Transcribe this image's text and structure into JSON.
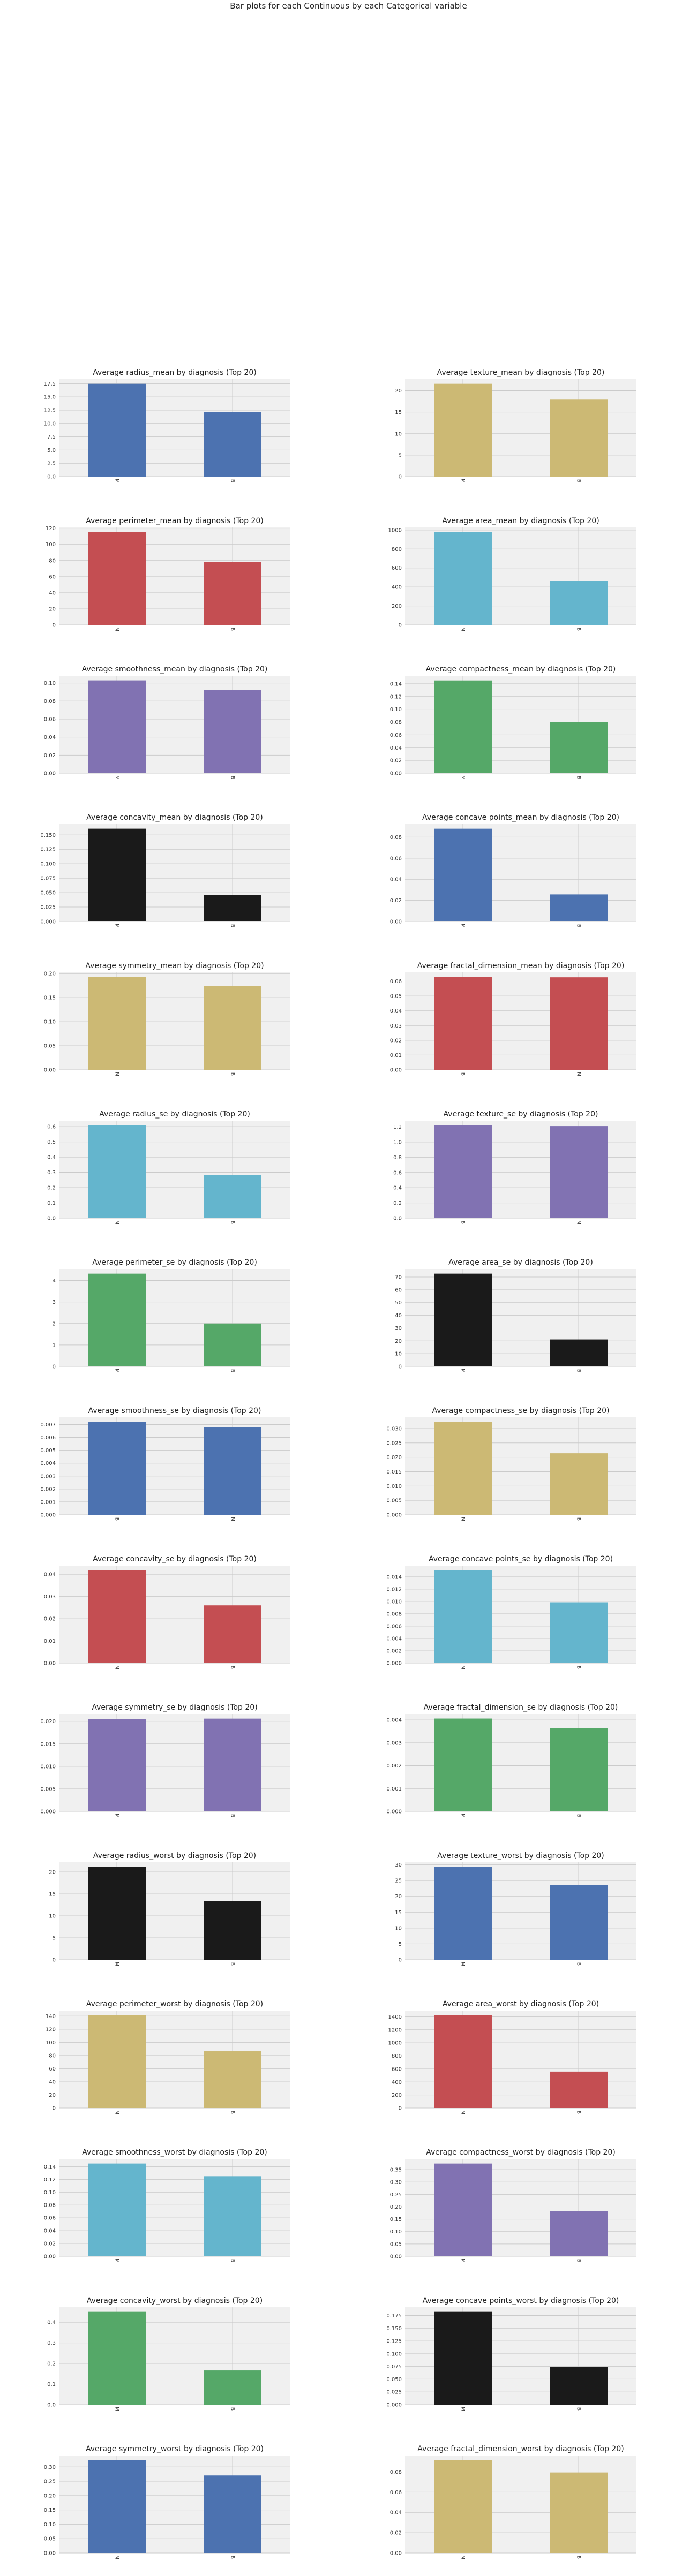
{
  "suptitle": "Bar plots for each Continuous by each Categorical variable",
  "colors": {
    "background": "#f0f0f0",
    "grid": "#cbcbcb",
    "blue": "#4c72b0",
    "yellow": "#ccb974",
    "red": "#c44e52",
    "cyan": "#64b5cd",
    "purple": "#8172b2",
    "green": "#55a868",
    "black": "#1a1a1a"
  },
  "chart_data": [
    {
      "type": "bar",
      "title": "Average radius_mean by diagnosis (Top 20)",
      "categories": [
        "M",
        "B"
      ],
      "values": [
        17.46,
        12.15
      ],
      "yticks": [
        0.0,
        2.5,
        5.0,
        7.5,
        10.0,
        12.5,
        15.0,
        17.5
      ],
      "ytick_labels": [
        "0.0",
        "2.5",
        "5.0",
        "7.5",
        "10.0",
        "12.5",
        "15.0",
        "17.5"
      ],
      "ylim": [
        0,
        18.34
      ],
      "color": "blue",
      "grid": true
    },
    {
      "type": "bar",
      "title": "Average texture_mean by diagnosis (Top 20)",
      "categories": [
        "M",
        "B"
      ],
      "values": [
        21.6,
        17.91
      ],
      "yticks": [
        0,
        5,
        10,
        15,
        20
      ],
      "ytick_labels": [
        "0",
        "5",
        "10",
        "15",
        "20"
      ],
      "ylim": [
        0,
        22.68
      ],
      "color": "yellow",
      "grid": true
    },
    {
      "type": "bar",
      "title": "Average perimeter_mean by diagnosis (Top 20)",
      "categories": [
        "M",
        "B"
      ],
      "values": [
        115.37,
        78.08
      ],
      "yticks": [
        0,
        20,
        40,
        60,
        80,
        100,
        120
      ],
      "ytick_labels": [
        "0",
        "20",
        "40",
        "60",
        "80",
        "100",
        "120"
      ],
      "ylim": [
        0,
        121.1
      ],
      "color": "red",
      "grid": true
    },
    {
      "type": "bar",
      "title": "Average area_mean by diagnosis (Top 20)",
      "categories": [
        "M",
        "B"
      ],
      "values": [
        978.38,
        462.79
      ],
      "yticks": [
        0,
        200,
        400,
        600,
        800,
        1000
      ],
      "ytick_labels": [
        "0",
        "200",
        "400",
        "600",
        "800",
        "1000"
      ],
      "ylim": [
        0,
        1027.3
      ],
      "color": "cyan",
      "grid": true
    },
    {
      "type": "bar",
      "title": "Average smoothness_mean by diagnosis (Top 20)",
      "categories": [
        "M",
        "B"
      ],
      "values": [
        0.103,
        0.0925
      ],
      "yticks": [
        0,
        0.02,
        0.04,
        0.06,
        0.08,
        0.1
      ],
      "ytick_labels": [
        "0.00",
        "0.02",
        "0.04",
        "0.06",
        "0.08",
        "0.10"
      ],
      "ylim": [
        0,
        0.1081
      ],
      "color": "purple",
      "grid": true
    },
    {
      "type": "bar",
      "title": "Average compactness_mean by diagnosis (Top 20)",
      "categories": [
        "M",
        "B"
      ],
      "values": [
        0.1452,
        0.0801
      ],
      "yticks": [
        0,
        0.02,
        0.04,
        0.06,
        0.08,
        0.1,
        0.12,
        0.14
      ],
      "ytick_labels": [
        "0.00",
        "0.02",
        "0.04",
        "0.06",
        "0.08",
        "0.10",
        "0.12",
        "0.14"
      ],
      "ylim": [
        0,
        0.1525
      ],
      "color": "green",
      "grid": true
    },
    {
      "type": "bar",
      "title": "Average concavity_mean by diagnosis (Top 20)",
      "categories": [
        "M",
        "B"
      ],
      "values": [
        0.1608,
        0.0461
      ],
      "yticks": [
        0,
        0.025,
        0.05,
        0.075,
        0.1,
        0.125,
        0.15
      ],
      "ytick_labels": [
        "0.000",
        "0.025",
        "0.050",
        "0.075",
        "0.100",
        "0.125",
        "0.150"
      ],
      "ylim": [
        0,
        0.1688
      ],
      "color": "black",
      "grid": true
    },
    {
      "type": "bar",
      "title": "Average concave points_mean by diagnosis (Top 20)",
      "categories": [
        "M",
        "B"
      ],
      "values": [
        0.088,
        0.0257
      ],
      "yticks": [
        0,
        0.02,
        0.04,
        0.06,
        0.08
      ],
      "ytick_labels": [
        "0.00",
        "0.02",
        "0.04",
        "0.06",
        "0.08"
      ],
      "ylim": [
        0,
        0.0924
      ],
      "color": "blue",
      "grid": true
    },
    {
      "type": "bar",
      "title": "Average symmetry_mean by diagnosis (Top 20)",
      "categories": [
        "M",
        "B"
      ],
      "values": [
        0.1929,
        0.1742
      ],
      "yticks": [
        0,
        0.05,
        0.1,
        0.15,
        0.2
      ],
      "ytick_labels": [
        "0.00",
        "0.05",
        "0.10",
        "0.15",
        "0.20"
      ],
      "ylim": [
        0,
        0.2025
      ],
      "color": "yellow",
      "grid": true
    },
    {
      "type": "bar",
      "title": "Average fractal_dimension_mean by diagnosis (Top 20)",
      "categories": [
        "B",
        "M"
      ],
      "values": [
        0.06287,
        0.06268
      ],
      "yticks": [
        0,
        0.01,
        0.02,
        0.03,
        0.04,
        0.05,
        0.06
      ],
      "ytick_labels": [
        "0.00",
        "0.01",
        "0.02",
        "0.03",
        "0.04",
        "0.05",
        "0.06"
      ],
      "ylim": [
        0,
        0.066
      ],
      "color": "red",
      "grid": true
    },
    {
      "type": "bar",
      "title": "Average radius_se by diagnosis (Top 20)",
      "categories": [
        "M",
        "B"
      ],
      "values": [
        0.609,
        0.284
      ],
      "yticks": [
        0,
        0.1,
        0.2,
        0.3,
        0.4,
        0.5,
        0.6
      ],
      "ytick_labels": [
        "0.0",
        "0.1",
        "0.2",
        "0.3",
        "0.4",
        "0.5",
        "0.6"
      ],
      "ylim": [
        0,
        0.639
      ],
      "color": "cyan",
      "grid": true
    },
    {
      "type": "bar",
      "title": "Average texture_se by diagnosis (Top 20)",
      "categories": [
        "B",
        "M"
      ],
      "values": [
        1.22,
        1.21
      ],
      "yticks": [
        0,
        0.2,
        0.4,
        0.6,
        0.8,
        1.0,
        1.2
      ],
      "ytick_labels": [
        "0.0",
        "0.2",
        "0.4",
        "0.6",
        "0.8",
        "1.0",
        "1.2"
      ],
      "ylim": [
        0,
        1.281
      ],
      "color": "purple",
      "grid": true
    },
    {
      "type": "bar",
      "title": "Average perimeter_se by diagnosis (Top 20)",
      "categories": [
        "M",
        "B"
      ],
      "values": [
        4.32,
        2.0
      ],
      "yticks": [
        0,
        1,
        2,
        3,
        4
      ],
      "ytick_labels": [
        "0",
        "1",
        "2",
        "3",
        "4"
      ],
      "ylim": [
        0,
        4.536
      ],
      "color": "green",
      "grid": true
    },
    {
      "type": "bar",
      "title": "Average area_se by diagnosis (Top 20)",
      "categories": [
        "M",
        "B"
      ],
      "values": [
        72.67,
        21.14
      ],
      "yticks": [
        0,
        10,
        20,
        30,
        40,
        50,
        60,
        70
      ],
      "ytick_labels": [
        "0",
        "10",
        "20",
        "30",
        "40",
        "50",
        "60",
        "70"
      ],
      "ylim": [
        0,
        76.3
      ],
      "color": "black",
      "grid": true
    },
    {
      "type": "bar",
      "title": "Average smoothness_se by diagnosis (Top 20)",
      "categories": [
        "B",
        "M"
      ],
      "values": [
        0.0072,
        0.00678
      ],
      "yticks": [
        0,
        0.001,
        0.002,
        0.003,
        0.004,
        0.005,
        0.006,
        0.007
      ],
      "ytick_labels": [
        "0.000",
        "0.001",
        "0.002",
        "0.003",
        "0.004",
        "0.005",
        "0.006",
        "0.007"
      ],
      "ylim": [
        0,
        0.00756
      ],
      "color": "blue",
      "grid": true
    },
    {
      "type": "bar",
      "title": "Average compactness_se by diagnosis (Top 20)",
      "categories": [
        "M",
        "B"
      ],
      "values": [
        0.0323,
        0.0214
      ],
      "yticks": [
        0,
        0.005,
        0.01,
        0.015,
        0.02,
        0.025,
        0.03
      ],
      "ytick_labels": [
        "0.000",
        "0.005",
        "0.010",
        "0.015",
        "0.020",
        "0.025",
        "0.030"
      ],
      "ylim": [
        0,
        0.0339
      ],
      "color": "yellow",
      "grid": true
    },
    {
      "type": "bar",
      "title": "Average concavity_se by diagnosis (Top 20)",
      "categories": [
        "M",
        "B"
      ],
      "values": [
        0.0418,
        0.026
      ],
      "yticks": [
        0,
        0.01,
        0.02,
        0.03,
        0.04
      ],
      "ytick_labels": [
        "0.00",
        "0.01",
        "0.02",
        "0.03",
        "0.04"
      ],
      "ylim": [
        0,
        0.0439
      ],
      "color": "red",
      "grid": true
    },
    {
      "type": "bar",
      "title": "Average concave points_se by diagnosis (Top 20)",
      "categories": [
        "M",
        "B"
      ],
      "values": [
        0.01506,
        0.00986
      ],
      "yticks": [
        0,
        0.002,
        0.004,
        0.006,
        0.008,
        0.01,
        0.012,
        0.014
      ],
      "ytick_labels": [
        "0.000",
        "0.002",
        "0.004",
        "0.006",
        "0.008",
        "0.010",
        "0.012",
        "0.014"
      ],
      "ylim": [
        0,
        0.01581
      ],
      "color": "cyan",
      "grid": true
    },
    {
      "type": "bar",
      "title": "Average symmetry_se by diagnosis (Top 20)",
      "categories": [
        "M",
        "B"
      ],
      "values": [
        0.0205,
        0.0206
      ],
      "yticks": [
        0,
        0.005,
        0.01,
        0.015,
        0.02
      ],
      "ytick_labels": [
        "0.000",
        "0.005",
        "0.010",
        "0.015",
        "0.020"
      ],
      "ylim": [
        0,
        0.02163
      ],
      "color": "purple",
      "grid": true
    },
    {
      "type": "bar",
      "title": "Average fractal_dimension_se by diagnosis (Top 20)",
      "categories": [
        "M",
        "B"
      ],
      "values": [
        0.00406,
        0.00364
      ],
      "yticks": [
        0,
        0.001,
        0.002,
        0.003,
        0.004
      ],
      "ytick_labels": [
        "0.000",
        "0.001",
        "0.002",
        "0.003",
        "0.004"
      ],
      "ylim": [
        0,
        0.00426
      ],
      "color": "green",
      "grid": true
    },
    {
      "type": "bar",
      "title": "Average radius_worst by diagnosis (Top 20)",
      "categories": [
        "M",
        "B"
      ],
      "values": [
        21.13,
        13.38
      ],
      "yticks": [
        0,
        5,
        10,
        15,
        20
      ],
      "ytick_labels": [
        "0",
        "5",
        "10",
        "15",
        "20"
      ],
      "ylim": [
        0,
        22.19
      ],
      "color": "black",
      "grid": true
    },
    {
      "type": "bar",
      "title": "Average texture_worst by diagnosis (Top 20)",
      "categories": [
        "M",
        "B"
      ],
      "values": [
        29.32,
        23.52
      ],
      "yticks": [
        0,
        5,
        10,
        15,
        20,
        25,
        30
      ],
      "ytick_labels": [
        "0",
        "5",
        "10",
        "15",
        "20",
        "25",
        "30"
      ],
      "ylim": [
        0,
        30.78
      ],
      "color": "blue",
      "grid": true
    },
    {
      "type": "bar",
      "title": "Average perimeter_worst by diagnosis (Top 20)",
      "categories": [
        "M",
        "B"
      ],
      "values": [
        141.37,
        87.01
      ],
      "yticks": [
        0,
        20,
        40,
        60,
        80,
        100,
        120,
        140
      ],
      "ytick_labels": [
        "0",
        "20",
        "40",
        "60",
        "80",
        "100",
        "120",
        "140"
      ],
      "ylim": [
        0,
        148.4
      ],
      "color": "yellow",
      "grid": true
    },
    {
      "type": "bar",
      "title": "Average area_worst by diagnosis (Top 20)",
      "categories": [
        "M",
        "B"
      ],
      "values": [
        1422.29,
        558.9
      ],
      "yticks": [
        0,
        200,
        400,
        600,
        800,
        1000,
        1200,
        1400
      ],
      "ytick_labels": [
        "0",
        "200",
        "400",
        "600",
        "800",
        "1000",
        "1200",
        "1400"
      ],
      "ylim": [
        0,
        1493.4
      ],
      "color": "red",
      "grid": true
    },
    {
      "type": "bar",
      "title": "Average smoothness_worst by diagnosis (Top 20)",
      "categories": [
        "M",
        "B"
      ],
      "values": [
        0.1448,
        0.125
      ],
      "yticks": [
        0,
        0.02,
        0.04,
        0.06,
        0.08,
        0.1,
        0.12,
        0.14
      ],
      "ytick_labels": [
        "0.00",
        "0.02",
        "0.04",
        "0.06",
        "0.08",
        "0.10",
        "0.12",
        "0.14"
      ],
      "ylim": [
        0,
        0.152
      ],
      "color": "cyan",
      "grid": true
    },
    {
      "type": "bar",
      "title": "Average compactness_worst by diagnosis (Top 20)",
      "categories": [
        "M",
        "B"
      ],
      "values": [
        0.3748,
        0.1827
      ],
      "yticks": [
        0,
        0.05,
        0.1,
        0.15,
        0.2,
        0.25,
        0.3,
        0.35
      ],
      "ytick_labels": [
        "0.00",
        "0.05",
        "0.10",
        "0.15",
        "0.20",
        "0.25",
        "0.30",
        "0.35"
      ],
      "ylim": [
        0,
        0.3935
      ],
      "color": "purple",
      "grid": true
    },
    {
      "type": "bar",
      "title": "Average concavity_worst by diagnosis (Top 20)",
      "categories": [
        "M",
        "B"
      ],
      "values": [
        0.4506,
        0.1662
      ],
      "yticks": [
        0,
        0.1,
        0.2,
        0.3,
        0.4
      ],
      "ytick_labels": [
        "0.0",
        "0.1",
        "0.2",
        "0.3",
        "0.4"
      ],
      "ylim": [
        0,
        0.4731
      ],
      "color": "green",
      "grid": true
    },
    {
      "type": "bar",
      "title": "Average concave points_worst by diagnosis (Top 20)",
      "categories": [
        "M",
        "B"
      ],
      "values": [
        0.1822,
        0.0744
      ],
      "yticks": [
        0,
        0.025,
        0.05,
        0.075,
        0.1,
        0.125,
        0.15,
        0.175
      ],
      "ytick_labels": [
        "0.000",
        "0.025",
        "0.050",
        "0.075",
        "0.100",
        "0.125",
        "0.150",
        "0.175"
      ],
      "ylim": [
        0,
        0.1913
      ],
      "color": "black",
      "grid": true
    },
    {
      "type": "bar",
      "title": "Average symmetry_worst by diagnosis (Top 20)",
      "categories": [
        "M",
        "B"
      ],
      "values": [
        0.3235,
        0.2702
      ],
      "yticks": [
        0,
        0.05,
        0.1,
        0.15,
        0.2,
        0.25,
        0.3
      ],
      "ytick_labels": [
        "0.00",
        "0.05",
        "0.10",
        "0.15",
        "0.20",
        "0.25",
        "0.30"
      ],
      "ylim": [
        0,
        0.3397
      ],
      "color": "blue",
      "grid": true
    },
    {
      "type": "bar",
      "title": "Average fractal_dimension_worst by diagnosis (Top 20)",
      "categories": [
        "M",
        "B"
      ],
      "values": [
        0.0915,
        0.0794
      ],
      "yticks": [
        0,
        0.02,
        0.04,
        0.06,
        0.08
      ],
      "ytick_labels": [
        "0.00",
        "0.02",
        "0.04",
        "0.06",
        "0.08"
      ],
      "ylim": [
        0,
        0.0961
      ],
      "color": "yellow",
      "grid": true
    }
  ]
}
